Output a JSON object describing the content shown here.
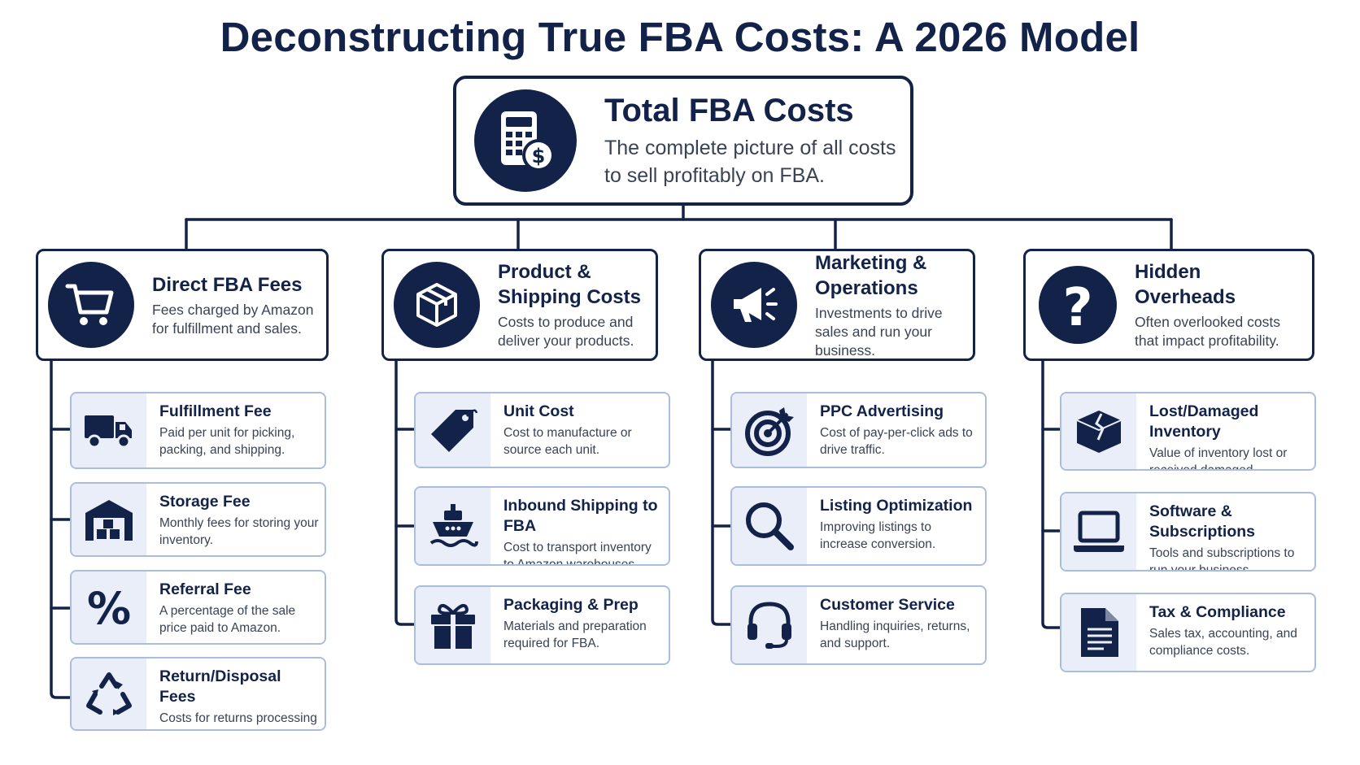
{
  "title": "Deconstructing True FBA Costs: A 2026 Model",
  "colors": {
    "navy": "#132248",
    "sub_border": "#a9bddd",
    "tile_bg": "#e9eef8"
  },
  "root": {
    "title": "Total FBA Costs",
    "description": "The complete picture of all costs to sell profitably on FBA.",
    "icon": "calculator-dollar-icon"
  },
  "categories": [
    {
      "title": "Direct FBA Fees",
      "description": "Fees charged by Amazon for fulfillment and sales.",
      "icon": "shopping-cart-icon",
      "items": [
        {
          "title": "Fulfillment Fee",
          "description": "Paid per unit for picking, packing, and shipping.",
          "icon": "delivery-truck-icon"
        },
        {
          "title": "Storage Fee",
          "description": "Monthly fees for storing your inventory.",
          "icon": "warehouse-icon"
        },
        {
          "title": "Referral Fee",
          "description": "A percentage of the sale price paid to Amazon.",
          "icon": "percent-icon"
        },
        {
          "title": "Return/Disposal Fees",
          "description": "Costs for returns processing or disposal of items.",
          "icon": "recycle-icon"
        }
      ]
    },
    {
      "title": "Product & Shipping Costs",
      "description": "Costs to produce and deliver your products.",
      "icon": "box-icon",
      "items": [
        {
          "title": "Unit Cost",
          "description": "Cost to manufacture or source each unit.",
          "icon": "price-tag-icon"
        },
        {
          "title": "Inbound Shipping to FBA",
          "description": "Cost to transport inventory to Amazon warehouses.",
          "icon": "ship-icon"
        },
        {
          "title": "Packaging & Prep",
          "description": "Materials and preparation required for FBA.",
          "icon": "gift-box-icon"
        }
      ]
    },
    {
      "title": "Marketing & Operations",
      "description": "Investments to drive sales and run your business.",
      "icon": "megaphone-icon",
      "items": [
        {
          "title": "PPC Advertising",
          "description": "Cost of pay-per-click ads to drive traffic.",
          "icon": "target-icon"
        },
        {
          "title": "Listing Optimization",
          "description": "Improving listings to increase conversion.",
          "icon": "magnifier-icon"
        },
        {
          "title": "Customer Service",
          "description": "Handling inquiries, returns, and support.",
          "icon": "headset-icon"
        }
      ]
    },
    {
      "title": "Hidden Overheads",
      "description": "Often overlooked costs that impact profitability.",
      "icon": "question-mark-icon",
      "items": [
        {
          "title": "Lost/Damaged Inventory",
          "description": "Value of inventory lost or received damaged.",
          "icon": "damaged-box-icon"
        },
        {
          "title": "Software & Subscriptions",
          "description": "Tools and subscriptions to run your business.",
          "icon": "laptop-icon"
        },
        {
          "title": "Tax & Compliance",
          "description": "Sales tax, accounting, and compliance costs.",
          "icon": "document-icon"
        }
      ]
    }
  ]
}
